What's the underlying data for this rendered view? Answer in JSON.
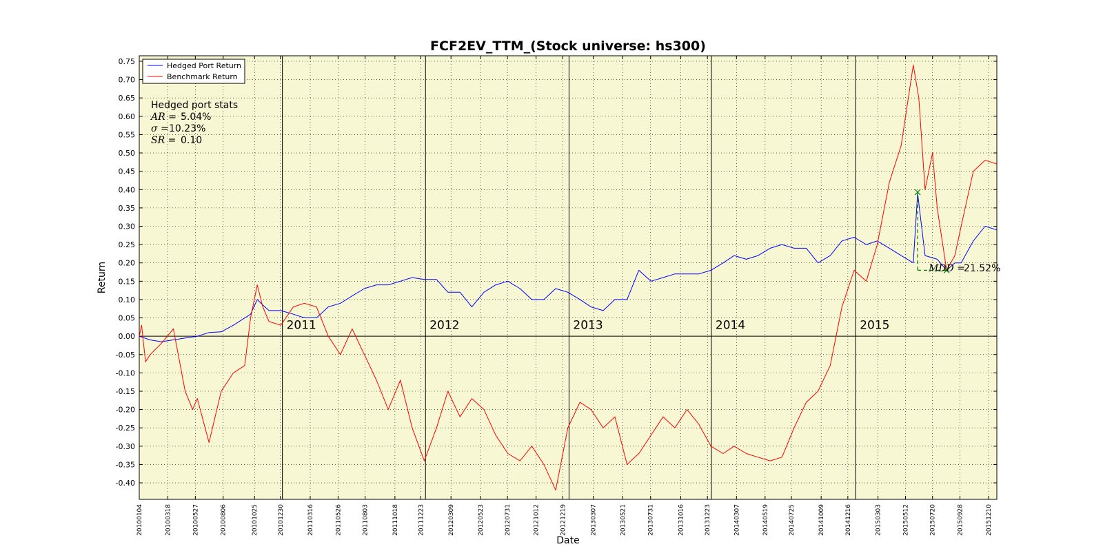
{
  "chart_data": {
    "type": "line",
    "title": "FCF2EV_TTM_(Stock universe: hs300)",
    "xlabel": "Date",
    "ylabel": "Return",
    "ylim": [
      -0.445,
      0.765
    ],
    "grid": true,
    "background_color": "#f7f7d3",
    "legend": {
      "placement": "top-left",
      "entries": [
        {
          "label": "Hedged Port Return",
          "color": "#0000ff"
        },
        {
          "label": "Benchmark Return",
          "color": "#ff0000"
        }
      ]
    },
    "yticks": [
      "0.75",
      "0.70",
      "0.65",
      "0.60",
      "0.55",
      "0.50",
      "0.45",
      "0.40",
      "0.35",
      "0.30",
      "0.25",
      "0.20",
      "0.15",
      "0.10",
      "0.05",
      "0.00",
      "-0.05",
      "-0.10",
      "-0.15",
      "-0.20",
      "-0.25",
      "-0.30",
      "-0.35",
      "-0.40"
    ],
    "xticks": [
      "20100104",
      "20100318",
      "20100527",
      "20100806",
      "20101025",
      "20101230",
      "20110316",
      "20110526",
      "20110803",
      "20111018",
      "20111223",
      "20120309",
      "20120523",
      "20120731",
      "20121012",
      "20121219",
      "20130307",
      "20130521",
      "20130731",
      "20131016",
      "20131223",
      "20140307",
      "20140519",
      "20140725",
      "20141009",
      "20141216",
      "20150303",
      "20150512",
      "20150720",
      "20150928",
      "20151210"
    ],
    "year_markers": [
      {
        "label": "2011",
        "date": "20110104"
      },
      {
        "label": "2012",
        "date": "20120104"
      },
      {
        "label": "2013",
        "date": "20130104"
      },
      {
        "label": "2014",
        "date": "20140102"
      },
      {
        "label": "2015",
        "date": "20150105"
      }
    ],
    "stats": {
      "heading": "Hedged port stats",
      "ar_label": "AR =",
      "ar_value": "5.04%",
      "sigma_label": "σ =",
      "sigma_value": "10.23%",
      "sr_label": "SR =",
      "sr_value": "0.10"
    },
    "mdd": {
      "label": "MDD =",
      "value": "21.52%",
      "peak": {
        "date": "20150612",
        "y": 0.393
      },
      "trough": {
        "date": "20150825",
        "y": 0.18
      },
      "color": "#008000"
    },
    "series": [
      {
        "name": "Hedged Port Return",
        "color": "#0000ff",
        "points": [
          [
            "20100104",
            0.0
          ],
          [
            "20100201",
            -0.01
          ],
          [
            "20100301",
            -0.015
          ],
          [
            "20100401",
            -0.01
          ],
          [
            "20100501",
            -0.005
          ],
          [
            "20100601",
            0.0
          ],
          [
            "20100701",
            0.01
          ],
          [
            "20100801",
            0.012
          ],
          [
            "20100901",
            0.03
          ],
          [
            "20101015",
            0.06
          ],
          [
            "20101101",
            0.1
          ],
          [
            "20101115",
            0.085
          ],
          [
            "20101201",
            0.07
          ],
          [
            "20101231",
            0.07
          ],
          [
            "20110201",
            0.06
          ],
          [
            "20110301",
            0.05
          ],
          [
            "20110401",
            0.05
          ],
          [
            "20110501",
            0.08
          ],
          [
            "20110601",
            0.09
          ],
          [
            "20110701",
            0.11
          ],
          [
            "20110801",
            0.13
          ],
          [
            "20110901",
            0.14
          ],
          [
            "20111001",
            0.14
          ],
          [
            "20111101",
            0.15
          ],
          [
            "20111201",
            0.16
          ],
          [
            "20120101",
            0.155
          ],
          [
            "20120201",
            0.155
          ],
          [
            "20120301",
            0.12
          ],
          [
            "20120401",
            0.12
          ],
          [
            "20120501",
            0.08
          ],
          [
            "20120601",
            0.12
          ],
          [
            "20120701",
            0.14
          ],
          [
            "20120801",
            0.15
          ],
          [
            "20120901",
            0.13
          ],
          [
            "20121001",
            0.1
          ],
          [
            "20121101",
            0.1
          ],
          [
            "20121201",
            0.13
          ],
          [
            "20130101",
            0.12
          ],
          [
            "20130201",
            0.1
          ],
          [
            "20130301",
            0.08
          ],
          [
            "20130401",
            0.07
          ],
          [
            "20130501",
            0.1
          ],
          [
            "20130601",
            0.1
          ],
          [
            "20130701",
            0.18
          ],
          [
            "20130801",
            0.15
          ],
          [
            "20130901",
            0.16
          ],
          [
            "20131001",
            0.17
          ],
          [
            "20131101",
            0.17
          ],
          [
            "20131201",
            0.17
          ],
          [
            "20140101",
            0.18
          ],
          [
            "20140201",
            0.2
          ],
          [
            "20140301",
            0.22
          ],
          [
            "20140401",
            0.21
          ],
          [
            "20140501",
            0.22
          ],
          [
            "20140601",
            0.24
          ],
          [
            "20140701",
            0.25
          ],
          [
            "20140801",
            0.24
          ],
          [
            "20140901",
            0.24
          ],
          [
            "20141001",
            0.2
          ],
          [
            "20141101",
            0.22
          ],
          [
            "20141201",
            0.26
          ],
          [
            "20150101",
            0.27
          ],
          [
            "20150201",
            0.25
          ],
          [
            "20150301",
            0.26
          ],
          [
            "20150401",
            0.24
          ],
          [
            "20150501",
            0.22
          ],
          [
            "20150601",
            0.2
          ],
          [
            "20150612",
            0.39
          ],
          [
            "20150701",
            0.22
          ],
          [
            "20150801",
            0.21
          ],
          [
            "20150825",
            0.18
          ],
          [
            "20150915",
            0.2
          ],
          [
            "20151001",
            0.2
          ],
          [
            "20151101",
            0.26
          ],
          [
            "20151201",
            0.3
          ],
          [
            "20151231",
            0.29
          ]
        ]
      },
      {
        "name": "Benchmark Return",
        "color": "#ff0000",
        "points": [
          [
            "20100104",
            0.0
          ],
          [
            "20100110",
            0.03
          ],
          [
            "20100120",
            -0.07
          ],
          [
            "20100201",
            -0.05
          ],
          [
            "20100301",
            -0.02
          ],
          [
            "20100401",
            0.02
          ],
          [
            "20100501",
            -0.15
          ],
          [
            "20100520",
            -0.2
          ],
          [
            "20100601",
            -0.17
          ],
          [
            "20100701",
            -0.29
          ],
          [
            "20100801",
            -0.15
          ],
          [
            "20100901",
            -0.1
          ],
          [
            "20100930",
            -0.08
          ],
          [
            "20101015",
            0.05
          ],
          [
            "20101101",
            0.14
          ],
          [
            "20101115",
            0.08
          ],
          [
            "20101201",
            0.04
          ],
          [
            "20101231",
            0.03
          ],
          [
            "20110201",
            0.08
          ],
          [
            "20110301",
            0.09
          ],
          [
            "20110401",
            0.08
          ],
          [
            "20110501",
            0.0
          ],
          [
            "20110601",
            -0.05
          ],
          [
            "20110701",
            0.02
          ],
          [
            "20110801",
            -0.05
          ],
          [
            "20110901",
            -0.12
          ],
          [
            "20111001",
            -0.2
          ],
          [
            "20111101",
            -0.12
          ],
          [
            "20111201",
            -0.25
          ],
          [
            "20120101",
            -0.34
          ],
          [
            "20120201",
            -0.25
          ],
          [
            "20120301",
            -0.15
          ],
          [
            "20120401",
            -0.22
          ],
          [
            "20120501",
            -0.17
          ],
          [
            "20120601",
            -0.2
          ],
          [
            "20120701",
            -0.27
          ],
          [
            "20120801",
            -0.32
          ],
          [
            "20120901",
            -0.34
          ],
          [
            "20121001",
            -0.3
          ],
          [
            "20121101",
            -0.35
          ],
          [
            "20121201",
            -0.42
          ],
          [
            "20130101",
            -0.25
          ],
          [
            "20130201",
            -0.18
          ],
          [
            "20130301",
            -0.2
          ],
          [
            "20130401",
            -0.25
          ],
          [
            "20130501",
            -0.22
          ],
          [
            "20130601",
            -0.35
          ],
          [
            "20130701",
            -0.32
          ],
          [
            "20130801",
            -0.27
          ],
          [
            "20130901",
            -0.22
          ],
          [
            "20131001",
            -0.25
          ],
          [
            "20131101",
            -0.2
          ],
          [
            "20131201",
            -0.24
          ],
          [
            "20140101",
            -0.3
          ],
          [
            "20140201",
            -0.32
          ],
          [
            "20140301",
            -0.3
          ],
          [
            "20140401",
            -0.32
          ],
          [
            "20140501",
            -0.33
          ],
          [
            "20140601",
            -0.34
          ],
          [
            "20140701",
            -0.33
          ],
          [
            "20140801",
            -0.25
          ],
          [
            "20140901",
            -0.18
          ],
          [
            "20141001",
            -0.15
          ],
          [
            "20141101",
            -0.08
          ],
          [
            "20141201",
            0.08
          ],
          [
            "20150101",
            0.18
          ],
          [
            "20150201",
            0.15
          ],
          [
            "20150301",
            0.25
          ],
          [
            "20150401",
            0.42
          ],
          [
            "20150501",
            0.52
          ],
          [
            "20150601",
            0.74
          ],
          [
            "20150615",
            0.65
          ],
          [
            "20150701",
            0.4
          ],
          [
            "20150720",
            0.5
          ],
          [
            "20150801",
            0.35
          ],
          [
            "20150825",
            0.18
          ],
          [
            "20150915",
            0.22
          ],
          [
            "20151001",
            0.3
          ],
          [
            "20151101",
            0.45
          ],
          [
            "20151201",
            0.48
          ],
          [
            "20151231",
            0.47
          ]
        ]
      }
    ]
  }
}
